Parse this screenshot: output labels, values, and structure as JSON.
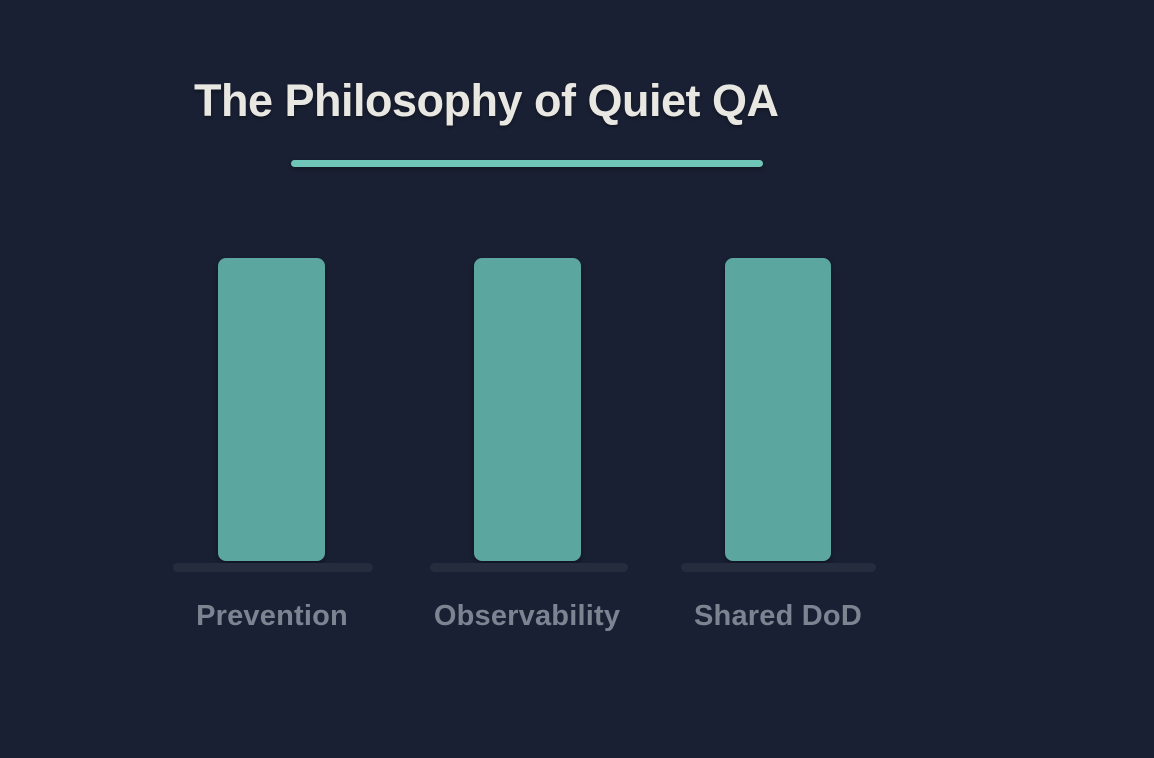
{
  "slide": {
    "title": "The Philosophy of Quiet QA",
    "colors": {
      "background": "#192033",
      "title_text": "#e9e7e2",
      "accent_underline": "#6ec5b8",
      "bar_fill": "#5ba7a0",
      "bar_track": "#242c3e",
      "label_text": "#7c8492"
    }
  },
  "bars": [
    {
      "label": "Prevention"
    },
    {
      "label": "Observability"
    },
    {
      "label": "Shared DoD"
    }
  ],
  "chart_data": {
    "type": "bar",
    "title": "The Philosophy of Quiet QA",
    "categories": [
      "Prevention",
      "Observability",
      "Shared DoD"
    ],
    "values": [
      1,
      1,
      1
    ],
    "xlabel": "",
    "ylabel": "",
    "ylim": [
      0,
      1
    ],
    "grid": false,
    "legend": "none",
    "notes": "Three equal-height pillar bars; no axes or value labels shown"
  }
}
